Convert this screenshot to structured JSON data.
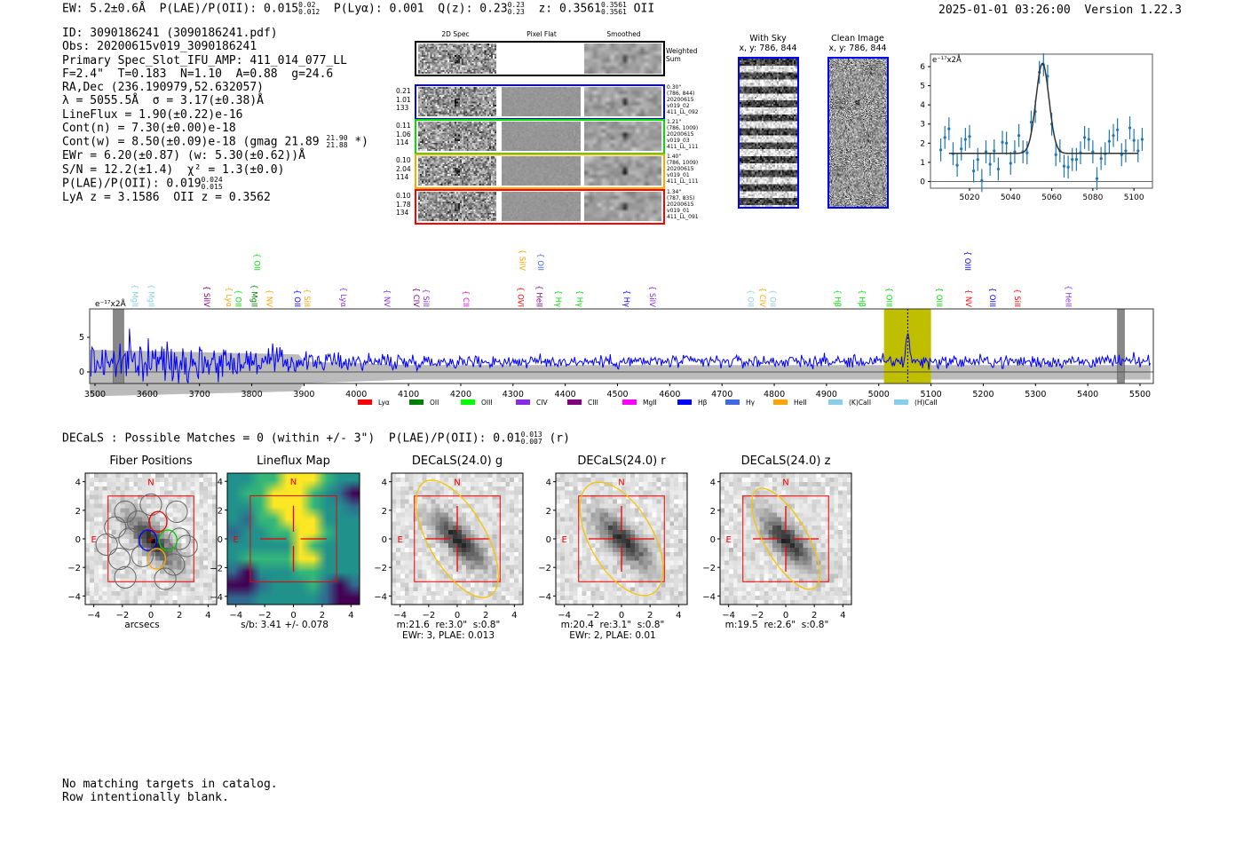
{
  "header": {
    "ew": "EW: 5.2±0.6Å",
    "plae_label": "P(LAE)/P(OII): 0.015",
    "plae_hi": "0.02",
    "plae_lo": "0.012",
    "plya": "P(Lyα): 0.001",
    "qz": "Q(z): 0.23",
    "qz_hi": "0.23",
    "qz_lo": "0.23",
    "z": "z: 0.3561",
    "z_hi": "0.3561",
    "z_lo": "0.3561",
    "z_line": "OII",
    "datetime": "2025-01-01 03:26:00",
    "version": "Version 1.22.3"
  },
  "info": {
    "lines": [
      "ID: 3090186241 (3090186241.pdf)",
      "Obs: 20200615v019_3090186241",
      "Primary Spec_Slot_IFU_AMP: 411_014_077_LL",
      "F=2.4\"  T=0.183  N=1.10  A=0.88  g=24.6",
      "RA,Dec (236.190979,52.632057)",
      "λ = 5055.5Å  σ = 3.17(±0.38)Å",
      "LineFlux = 1.90(±0.22)e-16",
      "Cont(n) = 7.30(±0.00)e-18"
    ],
    "contw": "Cont(w) = 8.50(±0.09)e-18 (gmag 21.89",
    "contw_hi": "21.90",
    "contw_lo": "21.88",
    "contw_end": "*)",
    "lines2": [
      "EWr = 6.20(±0.87) (w: 5.30(±0.62))Å",
      "S/N = 12.2(±1.4)  χ² = 1.3(±0.0)"
    ],
    "plae": "P(LAE)/P(OII): 0.019",
    "plae_hi": "0.024",
    "plae_lo": "0.015",
    "z_line": "LyA z = 3.1586  OII z = 0.3562"
  },
  "spec2d": {
    "col_titles": [
      "2D Spec",
      "Pixel Flat",
      "Smoothed"
    ],
    "weighted_sum": "Weighted\nSum",
    "rows": [
      {
        "color": "#0000ff",
        "left": "0.21\n1.01\n133",
        "right": "0.30\"\n(786, 844)\n20200615\nv019_02\n411_LL_092"
      },
      {
        "color": "#00e000",
        "left": "0.11\n1.06\n114",
        "right": "1.21\"\n(786, 1009)\n20200615\nv019_03\n411_LL_111"
      },
      {
        "color": "#ffa500",
        "left": "0.10\n2.04\n114",
        "right": "1.40\"\n(786, 1009)\n20200615\nv019_01\n411_LL_111"
      },
      {
        "color": "#ff0000",
        "left": "0.10\n1.78\n134",
        "right": "1.34\"\n(787, 835)\n20200615\nv019_01\n411_LL_091"
      }
    ]
  },
  "cutouts": {
    "with_sky": "With Sky\nx, y: 786, 844",
    "clean": "Clean Image\nx, y: 786, 844"
  },
  "decals": {
    "summary": "DECaLS : Possible Matches = 0 (within +/- 3\")  P(LAE)/P(OII): 0.01",
    "hi": "0.013",
    "lo": "0.007",
    "end": "(r)",
    "panels": [
      {
        "title": "Fiber Positions",
        "caption": "arcsecs"
      },
      {
        "title": "Lineflux Map",
        "caption": "s/b: 3.41 +/- 0.078"
      },
      {
        "title": "DECaLS(24.0) g",
        "caption": "m:21.6  re:3.0\"  s:0.8\"\nEWr: 3, PLAE: 0.013"
      },
      {
        "title": "DECaLS(24.0) r",
        "caption": "m:20.4  re:3.1\"  s:0.8\"\nEWr: 2, PLAE: 0.01"
      },
      {
        "title": "DECaLS(24.0) z",
        "caption": "m:19.5  re:2.6\"  s:0.8\""
      }
    ],
    "ticks": [
      "−4",
      "−2",
      "0",
      "2",
      "4"
    ],
    "north": "N",
    "east": "E"
  },
  "footer": [
    "No matching targets in catalog.",
    "Row intentionally blank."
  ],
  "chart_data": [
    {
      "type": "scatter",
      "name": "line-fit",
      "ylabel": "e⁻¹⁷x2Å",
      "xlim": [
        5001,
        5109
      ],
      "ylim": [
        -0.35,
        6.65
      ],
      "xticks": [
        5020,
        5040,
        5060,
        5080,
        5100
      ],
      "yticks": [
        0,
        1,
        2,
        3,
        4,
        5,
        6
      ],
      "x": [
        5006,
        5008,
        5010,
        5012,
        5014,
        5016,
        5018,
        5020,
        5022,
        5024,
        5026,
        5028,
        5030,
        5032,
        5034,
        5036,
        5038,
        5040,
        5042,
        5044,
        5046,
        5048,
        5050,
        5052,
        5054,
        5056,
        5058,
        5060,
        5062,
        5064,
        5066,
        5068,
        5070,
        5072,
        5074,
        5076,
        5078,
        5080,
        5082,
        5084,
        5086,
        5088,
        5090,
        5092,
        5094,
        5096,
        5098,
        5100,
        5102,
        5104
      ],
      "y": [
        1.65,
        2.3,
        2.75,
        1.45,
        0.85,
        1.7,
        2.2,
        2.35,
        0.55,
        1.15,
        0.05,
        1.55,
        0.9,
        1.6,
        0.65,
        2.05,
        2.0,
        0.95,
        1.55,
        2.4,
        1.55,
        1.5,
        3.1,
        3.65,
        5.7,
        6.1,
        5.5,
        3.0,
        1.4,
        1.6,
        0.8,
        0.75,
        1.15,
        1.15,
        1.5,
        2.3,
        2.2,
        1.55,
        0.15,
        1.2,
        1.45,
        2.1,
        2.4,
        2.7,
        1.4,
        1.6,
        2.8,
        2.15,
        1.6,
        2.2
      ],
      "yerr": 0.6,
      "fit": {
        "continuum": 1.47,
        "amplitude": 4.7,
        "center": 5055.5,
        "sigma": 3.17,
        "range": [
          5010,
          5102
        ]
      },
      "point_color": "#1f77b4"
    },
    {
      "type": "line",
      "name": "full-spectrum",
      "ylabel": "e⁻¹⁷x2Å",
      "xlim": [
        3490,
        5525
      ],
      "ylim": [
        -1.7,
        9.1
      ],
      "xticks": [
        3500,
        3600,
        3700,
        3800,
        3900,
        4000,
        4100,
        4200,
        4300,
        4400,
        4500,
        4600,
        4700,
        4800,
        4900,
        5000,
        5100,
        5200,
        5300,
        5400,
        5500
      ],
      "yticks": [
        0,
        5
      ],
      "continuum": 1.5,
      "line_center": 5055.5,
      "line_peak": 5.8,
      "highlight_range": [
        5010,
        5100
      ],
      "masked_ranges": [
        [
          3535,
          3555
        ],
        [
          5457,
          5470
        ]
      ],
      "line_labels": [
        {
          "w": 3566,
          "t": "MgII",
          "c": "#87ceeb",
          "row": 1
        },
        {
          "w": 3598,
          "t": "MgII",
          "c": "#87ceeb",
          "row": 1
        },
        {
          "w": 3704,
          "t": "SiIV",
          "c": "#800080",
          "row": 1
        },
        {
          "w": 3746,
          "t": "Lyα",
          "c": "#ffa500",
          "row": 1
        },
        {
          "w": 3764,
          "t": "OII",
          "c": "#00e000",
          "row": 1
        },
        {
          "w": 3795,
          "t": "MgII",
          "c": "#008000",
          "row": 1
        },
        {
          "w": 3800,
          "t": "OII",
          "c": "#00e000",
          "row": 0
        },
        {
          "w": 3824,
          "t": "NV",
          "c": "#ffa500",
          "row": 1
        },
        {
          "w": 3877,
          "t": "OII",
          "c": "#0000ff",
          "row": 1
        },
        {
          "w": 3896,
          "t": "SiII",
          "c": "#ffa500",
          "row": 1
        },
        {
          "w": 3966,
          "t": "Lyα",
          "c": "#8a2be2",
          "row": 1
        },
        {
          "w": 4049,
          "t": "NV",
          "c": "#8a2be2",
          "row": 1
        },
        {
          "w": 4105,
          "t": "CIV",
          "c": "#800080",
          "row": 1
        },
        {
          "w": 4124,
          "t": "SiII",
          "c": "#8a2be2",
          "row": 1
        },
        {
          "w": 4200,
          "t": "CII",
          "c": "#ff00ff",
          "row": 1
        },
        {
          "w": 4305,
          "t": "OVI",
          "c": "#ff0000",
          "row": 1
        },
        {
          "w": 4308,
          "t": "SiIV",
          "c": "#ffa500",
          "row": 0
        },
        {
          "w": 4343,
          "t": "OII",
          "c": "#4169e1",
          "row": 0
        },
        {
          "w": 4340,
          "t": "HeII",
          "c": "#800080",
          "row": 1
        },
        {
          "w": 4377,
          "t": "Hγ",
          "c": "#00e000",
          "row": 1
        },
        {
          "w": 4418,
          "t": "Hγ",
          "c": "#00e000",
          "row": 1
        },
        {
          "w": 4508,
          "t": "Hγ",
          "c": "#0000ff",
          "row": 1
        },
        {
          "w": 4557,
          "t": "SiIV",
          "c": "#8a2be2",
          "row": 1
        },
        {
          "w": 4745,
          "t": "OII",
          "c": "#87ceeb",
          "row": 1
        },
        {
          "w": 4768,
          "t": "CIV",
          "c": "#ffa500",
          "row": 1
        },
        {
          "w": 4787,
          "t": "OII",
          "c": "#87ceeb",
          "row": 1
        },
        {
          "w": 4911,
          "t": "Hβ",
          "c": "#00e000",
          "row": 1
        },
        {
          "w": 4958,
          "t": "Hβ",
          "c": "#00e000",
          "row": 1
        },
        {
          "w": 5010,
          "t": "OIII",
          "c": "#00e000",
          "row": 1
        },
        {
          "w": 5106,
          "t": "OIII",
          "c": "#00e000",
          "row": 1
        },
        {
          "w": 5162,
          "t": "NV",
          "c": "#ff0000",
          "row": 1
        },
        {
          "w": 5160,
          "t": "OIII",
          "c": "#0000ff",
          "row": 0
        },
        {
          "w": 5208,
          "t": "OIII",
          "c": "#0000ff",
          "row": 1
        },
        {
          "w": 5255,
          "t": "SiII",
          "c": "#ff0000",
          "row": 1
        },
        {
          "w": 5353,
          "t": "HeII",
          "c": "#8a2be2",
          "row": 1
        }
      ],
      "legend": [
        {
          "t": "Lyα",
          "c": "#ff0000"
        },
        {
          "t": "OII",
          "c": "#008000"
        },
        {
          "t": "OIII",
          "c": "#00ff00"
        },
        {
          "t": "CIV",
          "c": "#8a2be2"
        },
        {
          "t": "CIII",
          "c": "#800080"
        },
        {
          "t": "MgII",
          "c": "#ff00ff"
        },
        {
          "t": "Hβ",
          "c": "#0000ff"
        },
        {
          "t": "Hγ",
          "c": "#4169e1"
        },
        {
          "t": "HeII",
          "c": "#ffa500"
        },
        {
          "t": "(K)CaII",
          "c": "#87ceeb"
        },
        {
          "t": "(H)CaII",
          "c": "#87ceeb"
        }
      ],
      "legend_position": "bottom",
      "series_color": "#0000ff",
      "highlight_color": "#bfbf00"
    }
  ]
}
